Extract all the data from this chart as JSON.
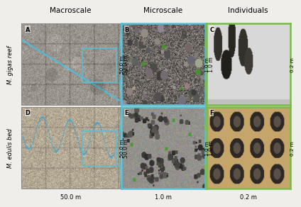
{
  "col_headers": [
    "Macroscale",
    "Microscale",
    "Individuals"
  ],
  "row_labels": [
    "M. gigas reef",
    "M. edulis bed"
  ],
  "panel_labels_row0": [
    "A",
    "B",
    "C"
  ],
  "panel_labels_row1": [
    "D",
    "E",
    "F"
  ],
  "scale_left_row0": [
    "",
    "50.0 m",
    "1.0 m"
  ],
  "scale_left_row1": [
    "",
    "50.0 m",
    "1.0 m"
  ],
  "scale_right_row0": [
    "50.0 m",
    "1.0 m",
    "0.2 m"
  ],
  "scale_right_row1": [
    "50.0 m",
    "1.0 m",
    "0.2 m"
  ],
  "scale_bottom": [
    "50.0 m",
    "1.0 m",
    "0.2 m"
  ],
  "border_blue": "#5bbdd4",
  "border_green": "#7aba48",
  "bg": "#f0eeeb",
  "panel_base_colors_row0": [
    "#9a9a90",
    "#706860",
    "#c8c0b0"
  ],
  "panel_base_colors_row1": [
    "#b8b098",
    "#808078",
    "#c8a870"
  ],
  "noise_seeds": [
    10,
    20,
    30,
    40,
    50,
    60
  ]
}
